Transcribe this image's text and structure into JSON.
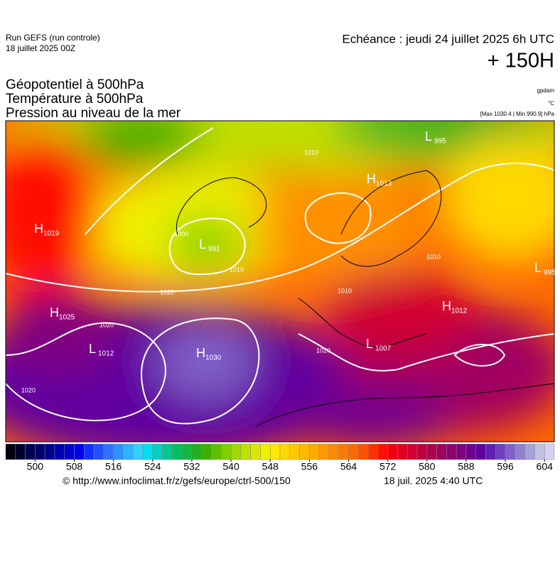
{
  "header": {
    "run": "Run GEFS (run controle)",
    "date": "18 juillet 2025 00Z",
    "echeance": "Echéance : jeudi 24 juillet 2025 6h UTC",
    "lead": "+ 150H",
    "titles": [
      "Géopotentiel à 500hPa",
      "Température à 500hPa",
      "Pression au niveau de la mer"
    ],
    "units": [
      "gpdam",
      "°C",
      "[Max 1030.4 | Min 990.9] hPa"
    ]
  },
  "map": {
    "centers": [
      {
        "type": "H",
        "value": "1019"
      },
      {
        "type": "L",
        "value": "991"
      },
      {
        "type": "H",
        "value": "1025"
      },
      {
        "type": "L",
        "value": "1012"
      },
      {
        "type": "H",
        "value": "1030"
      },
      {
        "type": "H",
        "value": "1013"
      },
      {
        "type": "L",
        "value": "995"
      },
      {
        "type": "H",
        "value": "1012"
      },
      {
        "type": "L",
        "value": "1007"
      },
      {
        "type": "L",
        "value": "995"
      }
    ],
    "isobar_labels": [
      "1020",
      "1020",
      "1020",
      "1010",
      "1010",
      "1010",
      "1000",
      "1020",
      "1010"
    ]
  },
  "colorbar": {
    "lim": [
      494,
      606
    ],
    "ticks": [
      500,
      508,
      516,
      524,
      532,
      540,
      548,
      556,
      564,
      572,
      580,
      588,
      596,
      604
    ],
    "colors": [
      "#000010",
      "#000030",
      "#000050",
      "#000070",
      "#000090",
      "#0000b0",
      "#0000d0",
      "#0000f0",
      "#1030ff",
      "#2050ff",
      "#3070ff",
      "#3090ff",
      "#30b0ff",
      "#30d0ff",
      "#00e0f0",
      "#00d0c0",
      "#00c890",
      "#00c060",
      "#10b840",
      "#20b020",
      "#40b000",
      "#60c000",
      "#80d000",
      "#a0d800",
      "#c0e000",
      "#d8e800",
      "#f0f000",
      "#ffe800",
      "#ffd800",
      "#ffc800",
      "#ffb800",
      "#ffa800",
      "#ff9800",
      "#ff8800",
      "#ff7800",
      "#ff6800",
      "#ff5000",
      "#ff3000",
      "#ff1000",
      "#f00010",
      "#e00020",
      "#d00030",
      "#c00040",
      "#b00050",
      "#a00060",
      "#900070",
      "#800080",
      "#700090",
      "#6000a0",
      "#6020b0",
      "#7040c0",
      "#8060c8",
      "#9080d0",
      "#a8a0d8",
      "#c0c0e0",
      "#d8d0f0"
    ]
  },
  "footer": {
    "source": "© http://www.infoclimat.fr/z/gefs/europe/ctrl-500/150",
    "time": "18 juil. 2025  4:40 UTC"
  }
}
